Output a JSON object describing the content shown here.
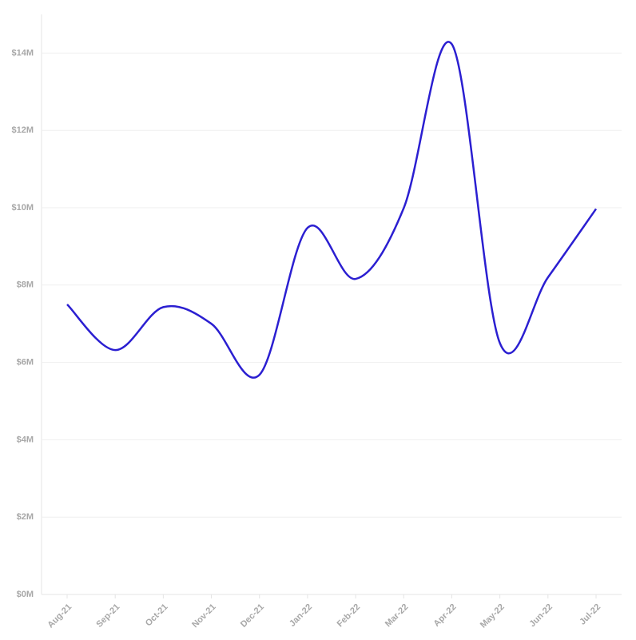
{
  "chart_data": {
    "type": "line",
    "categories": [
      "Aug-21",
      "Sep-21",
      "Oct-21",
      "Nov-21",
      "Dec-21",
      "Jan-22",
      "Feb-22",
      "Mar-22",
      "Apr-22",
      "May-22",
      "Jun-22",
      "Jul-22"
    ],
    "series": [
      {
        "color": "#2b1fd1",
        "values": [
          7.5,
          6.32,
          7.43,
          7.0,
          5.68,
          9.48,
          8.16,
          9.99,
          14.23,
          6.5,
          8.2,
          9.97
        ]
      }
    ],
    "ylim": [
      0,
      15
    ],
    "yticks": [
      {
        "value": 0,
        "label": "$0M"
      },
      {
        "value": 2,
        "label": "$2M"
      },
      {
        "value": 4,
        "label": "$4M"
      },
      {
        "value": 6,
        "label": "$6M"
      },
      {
        "value": 8,
        "label": "$8M"
      },
      {
        "value": 10,
        "label": "$10M"
      },
      {
        "value": 12,
        "label": "$12M"
      },
      {
        "value": 14,
        "label": "$14M"
      }
    ],
    "grid": true
  }
}
